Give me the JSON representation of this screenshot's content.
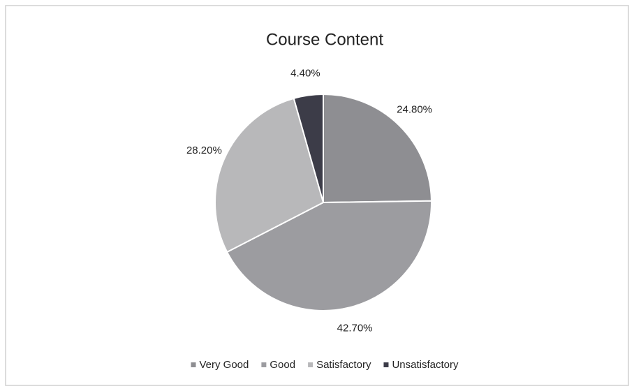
{
  "chart_data": {
    "type": "pie",
    "title": "Course Content",
    "categories": [
      "Very Good",
      "Good",
      "Satisfactory",
      "Unsatisfactory"
    ],
    "values": [
      24.8,
      42.7,
      28.2,
      4.4
    ],
    "value_labels": [
      "24.80%",
      "42.70%",
      "28.20%",
      "4.40%"
    ],
    "colors": [
      "#8e8e92",
      "#9c9ca0",
      "#b8b8ba",
      "#3c3c48"
    ],
    "legend": "bottom"
  }
}
